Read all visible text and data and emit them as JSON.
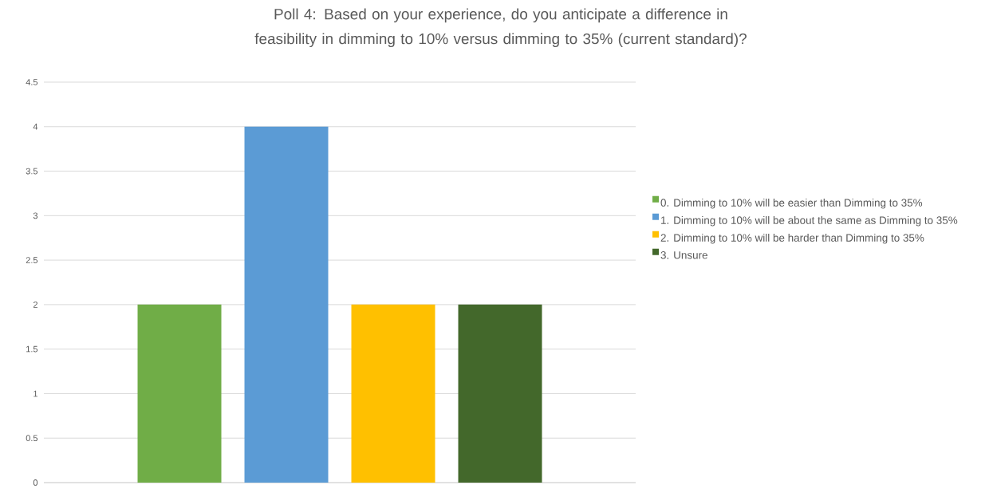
{
  "chart_data": {
    "type": "bar",
    "title": "Poll 4: Based on your experience, do you anticipate a difference in feasibility in dimming to 10% versus dimming to 35% (current standard)?",
    "categories": [
      null
    ],
    "series": [
      {
        "name": "0.   Dimming to 10% will be easier than Dimming to 35%",
        "color": "#70ad47",
        "values": [
          2
        ]
      },
      {
        "name": "1.   Dimming to 10% will be about the same as Dimming to 35%",
        "color": "#5b9bd5",
        "values": [
          4
        ]
      },
      {
        "name": "2.   Dimming to 10% will be harder than Dimming to 35%",
        "color": "#ffc000",
        "values": [
          2
        ]
      },
      {
        "name": "3.   Unsure",
        "color": "#43682b",
        "values": [
          2
        ]
      }
    ],
    "ylim": [
      0,
      4.5
    ],
    "yticks": [
      0,
      0.5,
      1,
      1.5,
      2,
      2.5,
      3,
      3.5,
      4,
      4.5
    ],
    "grid": "y",
    "legend": "right"
  }
}
